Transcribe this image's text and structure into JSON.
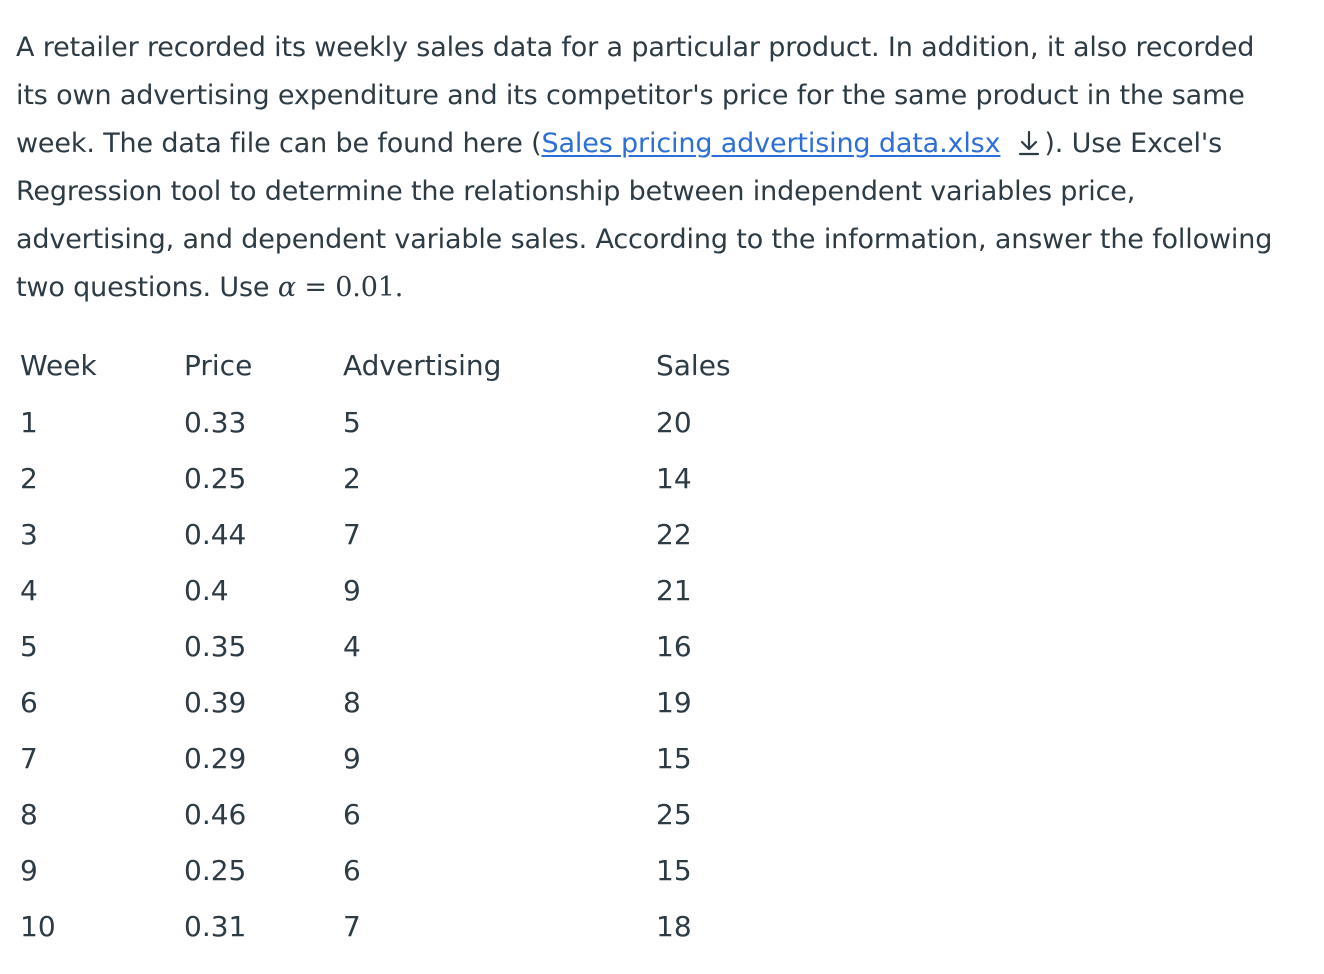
{
  "question": {
    "line1": "A retailer recorded its weekly sales data for a particular product. In addition, it also recorded",
    "line2": "its own advertising expenditure and its competitor's price for the same product in the same",
    "line3_before": "week. The data file can be found here (",
    "file_link": "Sales pricing advertising data.xlsx",
    "line3_after": "). Use Excel's",
    "line4": "Regression tool to determine the relationship between independent variables price,",
    "line5": "advertising, and dependent variable sales. According to the information, answer the following",
    "line6_before": "two questions. Use ",
    "alpha_symbol": "α",
    "alpha_equals": " = ",
    "alpha_value": "0.01",
    "line6_after": ".",
    "download_icon": "download-arrow-icon"
  },
  "table": {
    "headers": [
      "Week",
      "Price",
      "Advertising",
      "Sales"
    ],
    "rows": [
      [
        "1",
        "0.33",
        "5",
        "20"
      ],
      [
        "2",
        "0.25",
        "2",
        "14"
      ],
      [
        "3",
        "0.44",
        "7",
        "22"
      ],
      [
        "4",
        "0.4",
        "9",
        "21"
      ],
      [
        "5",
        "0.35",
        "4",
        "16"
      ],
      [
        "6",
        "0.39",
        "8",
        "19"
      ],
      [
        "7",
        "0.29",
        "9",
        "15"
      ],
      [
        "8",
        "0.46",
        "6",
        "25"
      ],
      [
        "9",
        "0.25",
        "6",
        "15"
      ],
      [
        "10",
        "0.31",
        "7",
        "18"
      ]
    ]
  },
  "colors": {
    "text": "#2d3b45",
    "link": "#2d6fd8"
  }
}
